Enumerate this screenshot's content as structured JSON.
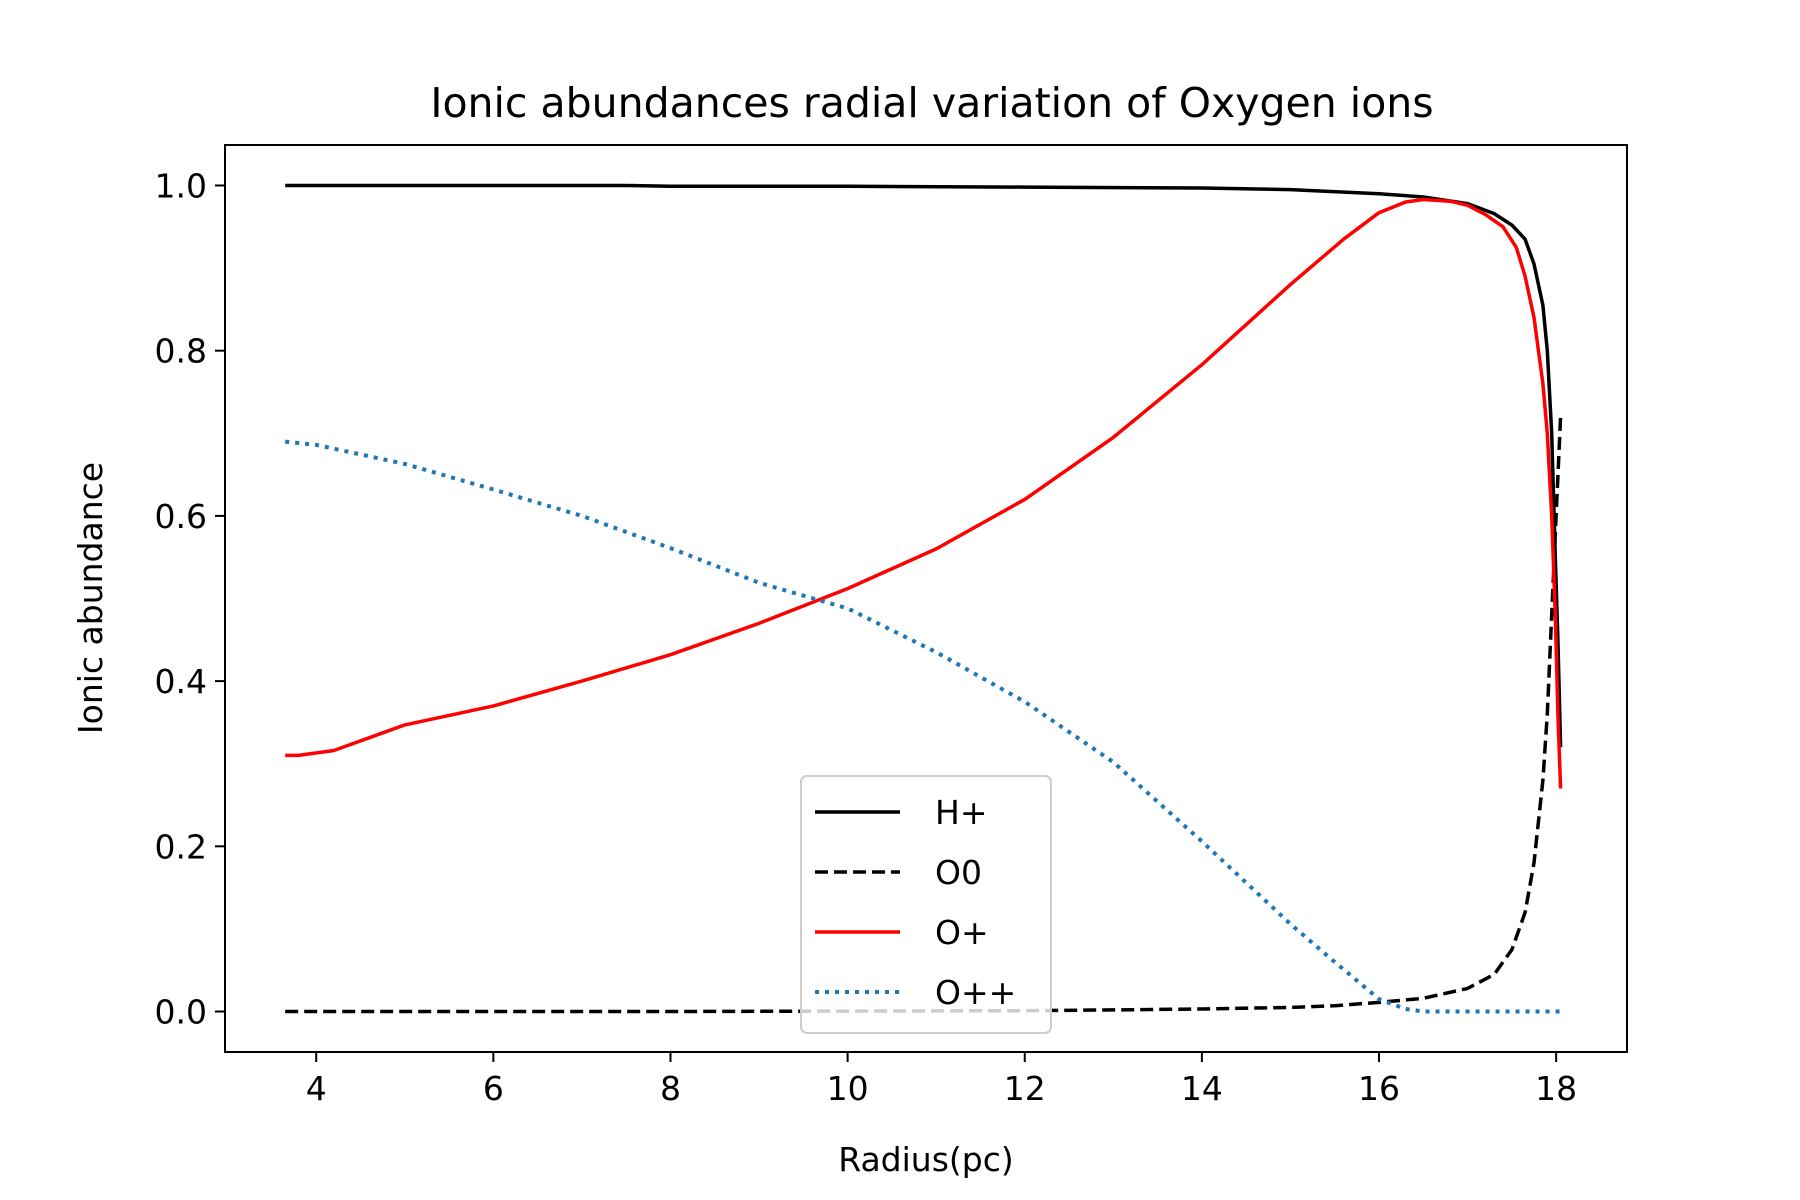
{
  "chart_data": {
    "type": "line",
    "title": "Ionic abundances radial variation of Oxygen ions",
    "xlabel": "Radius(pc)",
    "ylabel": "Ionic abundance",
    "xlim": [
      2.97,
      18.8
    ],
    "ylim": [
      -0.049,
      1.049
    ],
    "xticks": [
      4,
      6,
      8,
      10,
      12,
      14,
      16,
      18
    ],
    "yticks": [
      0.0,
      0.2,
      0.4,
      0.6,
      0.8,
      1.0
    ],
    "ytick_labels": [
      "0.0",
      "0.2",
      "0.4",
      "0.6",
      "0.8",
      "1.0"
    ],
    "grid": false,
    "legend_position": "lower-center",
    "series": [
      {
        "name": "H+",
        "color": "#000000",
        "dash": "solid",
        "points": [
          [
            3.65,
            1.0
          ],
          [
            5,
            1.0
          ],
          [
            7.5,
            1.0
          ],
          [
            8,
            0.999
          ],
          [
            10,
            0.999
          ],
          [
            12,
            0.998
          ],
          [
            14,
            0.997
          ],
          [
            15,
            0.995
          ],
          [
            16,
            0.99
          ],
          [
            16.5,
            0.986
          ],
          [
            17,
            0.978
          ],
          [
            17.3,
            0.966
          ],
          [
            17.5,
            0.952
          ],
          [
            17.65,
            0.935
          ],
          [
            17.75,
            0.905
          ],
          [
            17.85,
            0.855
          ],
          [
            17.9,
            0.8
          ],
          [
            17.95,
            0.7
          ],
          [
            17.99,
            0.55
          ],
          [
            18.02,
            0.45
          ],
          [
            18.05,
            0.32
          ]
        ]
      },
      {
        "name": "O0",
        "color": "#000000",
        "dash": "dashed",
        "points": [
          [
            3.65,
            0.0
          ],
          [
            8,
            0.0
          ],
          [
            10,
            0.0005
          ],
          [
            12,
            0.001
          ],
          [
            13,
            0.002
          ],
          [
            14,
            0.003
          ],
          [
            15,
            0.005
          ],
          [
            15.5,
            0.007
          ],
          [
            16,
            0.011
          ],
          [
            16.5,
            0.016
          ],
          [
            17,
            0.028
          ],
          [
            17.3,
            0.045
          ],
          [
            17.5,
            0.075
          ],
          [
            17.65,
            0.12
          ],
          [
            17.75,
            0.18
          ],
          [
            17.85,
            0.28
          ],
          [
            17.9,
            0.36
          ],
          [
            17.95,
            0.48
          ],
          [
            18.0,
            0.6
          ],
          [
            18.05,
            0.72
          ]
        ]
      },
      {
        "name": "O+",
        "color": "#ff0000",
        "dash": "solid",
        "points": [
          [
            3.65,
            0.31
          ],
          [
            3.8,
            0.31
          ],
          [
            4.2,
            0.316
          ],
          [
            5,
            0.347
          ],
          [
            6,
            0.37
          ],
          [
            7,
            0.4
          ],
          [
            8,
            0.432
          ],
          [
            9,
            0.47
          ],
          [
            10,
            0.512
          ],
          [
            11,
            0.56
          ],
          [
            12,
            0.62
          ],
          [
            13,
            0.695
          ],
          [
            14,
            0.783
          ],
          [
            15,
            0.88
          ],
          [
            15.6,
            0.935
          ],
          [
            16,
            0.967
          ],
          [
            16.3,
            0.98
          ],
          [
            16.5,
            0.983
          ],
          [
            16.8,
            0.981
          ],
          [
            17,
            0.976
          ],
          [
            17.2,
            0.965
          ],
          [
            17.4,
            0.95
          ],
          [
            17.55,
            0.925
          ],
          [
            17.65,
            0.89
          ],
          [
            17.75,
            0.84
          ],
          [
            17.85,
            0.76
          ],
          [
            17.9,
            0.7
          ],
          [
            17.95,
            0.6
          ],
          [
            17.99,
            0.48
          ],
          [
            18.02,
            0.36
          ],
          [
            18.05,
            0.27
          ]
        ]
      },
      {
        "name": "O++",
        "color": "#1f77b4",
        "dash": "dotted",
        "points": [
          [
            3.65,
            0.69
          ],
          [
            4,
            0.686
          ],
          [
            5,
            0.663
          ],
          [
            6,
            0.632
          ],
          [
            7,
            0.6
          ],
          [
            8,
            0.561
          ],
          [
            9,
            0.519
          ],
          [
            10,
            0.488
          ],
          [
            11,
            0.435
          ],
          [
            12,
            0.375
          ],
          [
            13,
            0.302
          ],
          [
            14,
            0.206
          ],
          [
            15,
            0.106
          ],
          [
            15.5,
            0.06
          ],
          [
            16,
            0.015
          ],
          [
            16.3,
            0.003
          ],
          [
            16.5,
            0.0
          ],
          [
            17,
            0.0
          ],
          [
            18,
            0.0
          ],
          [
            18.05,
            0.0
          ]
        ]
      }
    ]
  }
}
